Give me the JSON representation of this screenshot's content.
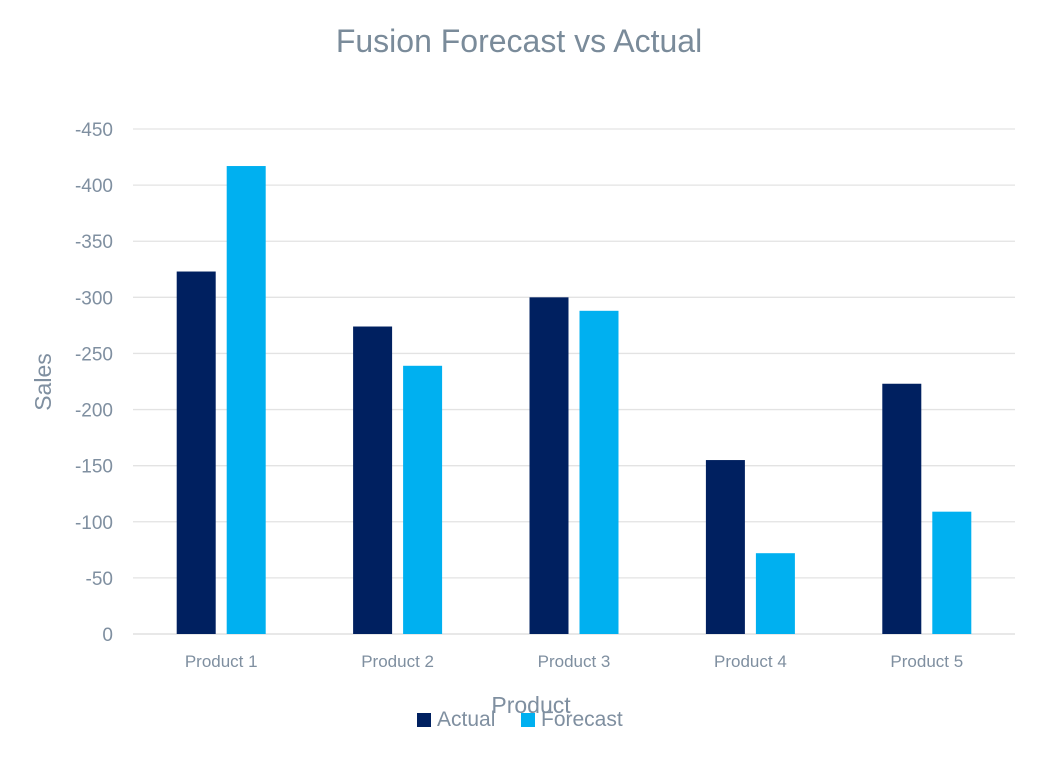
{
  "chart_data": {
    "type": "bar",
    "title": "Fusion Forecast vs Actual",
    "xlabel": "Product",
    "ylabel": "Sales",
    "categories": [
      "Product 1",
      "Product 2",
      "Product 3",
      "Product 4",
      "Product 5"
    ],
    "series": [
      {
        "name": "Actual",
        "color": "#002060",
        "values": [
          -323,
          -274,
          -300,
          -155,
          -223
        ]
      },
      {
        "name": "Forecast",
        "color": "#00B0F0",
        "values": [
          -417,
          -239,
          -288,
          -72,
          -109
        ]
      }
    ],
    "ylim": [
      0,
      -450
    ],
    "y_ticks": [
      0,
      -50,
      -100,
      -150,
      -200,
      -250,
      -300,
      -350,
      -400,
      -450
    ],
    "y_tick_labels": [
      "0",
      "-50",
      "-100",
      "-150",
      "-200",
      "-250",
      "-300",
      "-350",
      "-400",
      "-450"
    ],
    "y_axis_reversed": true,
    "grid": true,
    "legend": "bottom",
    "colors": {
      "text": "#7F8FA0",
      "title": "#7A8B9A",
      "gridline": "#E3E3E3",
      "axis": "#D9D9D9"
    }
  }
}
